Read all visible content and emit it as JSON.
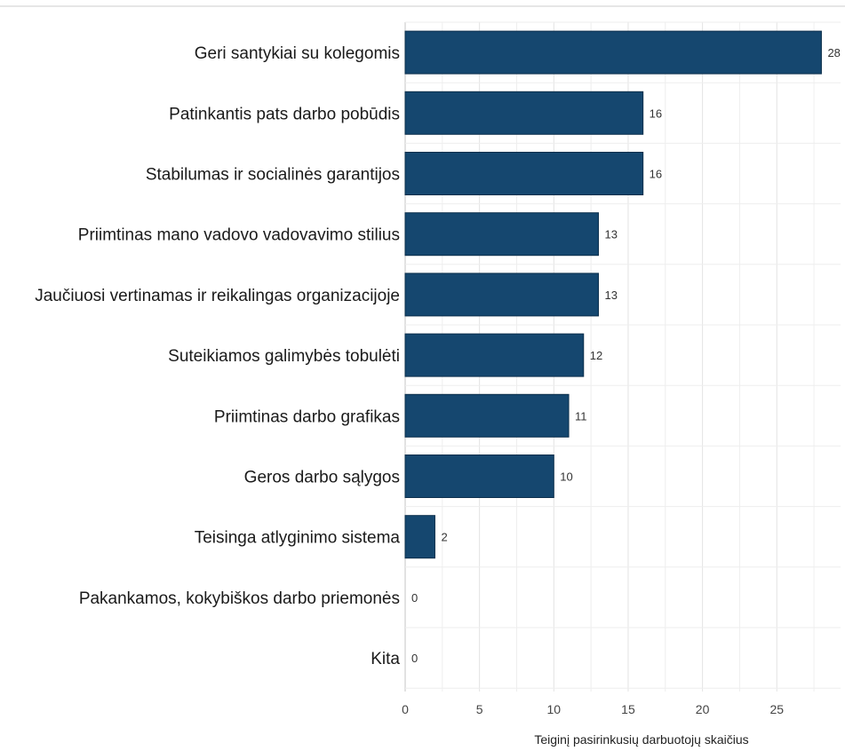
{
  "chart_data": {
    "type": "bar",
    "orientation": "horizontal",
    "categories": [
      "Geri santykiai su kolegomis",
      "Patinkantis pats darbo pobūdis",
      "Stabilumas ir socialinės garantijos",
      "Priimtinas mano vadovo vadovavimo stilius",
      "Jaučiuosi vertinamas ir reikalingas organizacijoje",
      "Suteikiamos galimybės tobulėti",
      "Priimtinas darbo grafikas",
      "Geros darbo sąlygos",
      "Teisinga atlyginimo sistema",
      "Pakankamos, kokybiškos darbo priemonės",
      "Kita"
    ],
    "values": [
      28,
      16,
      16,
      13,
      13,
      12,
      11,
      10,
      2,
      0,
      0
    ],
    "xlabel": "Teiginį pasirinkusių darbuotojų skaičius",
    "ylabel": "",
    "xlim": [
      0,
      29
    ],
    "xticks": [
      0,
      5,
      10,
      15,
      20,
      25
    ],
    "grid": true,
    "bar_color": "#15476f",
    "data_labels": true
  }
}
